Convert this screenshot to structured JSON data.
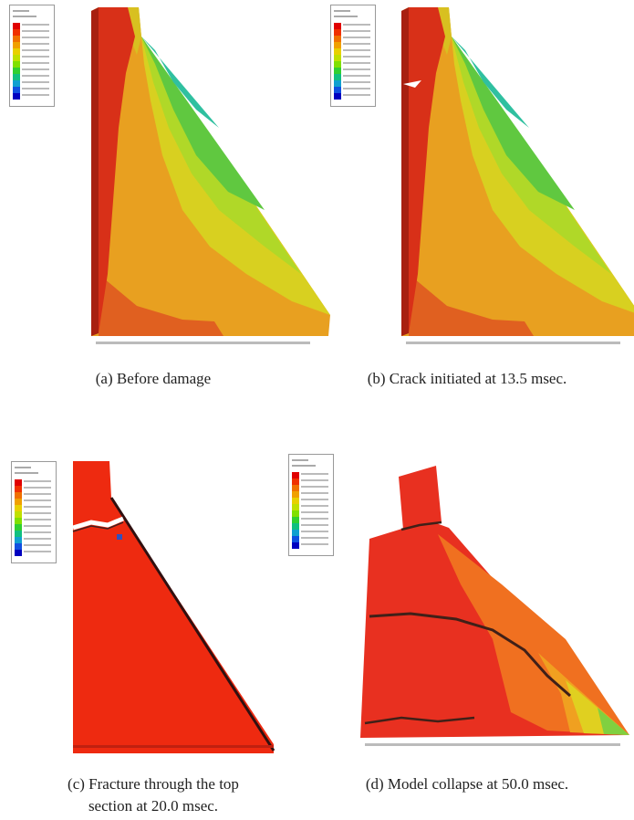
{
  "panels": [
    {
      "caption_lines": [
        "(a) Before damage"
      ]
    },
    {
      "caption_lines": [
        "(b) Crack initiated at 13.5 msec."
      ]
    },
    {
      "caption_lines": [
        "(c) Fracture through the top",
        "section at 20.0 msec."
      ]
    },
    {
      "caption_lines": [
        "(d) Model collapse at 50.0 msec."
      ]
    }
  ]
}
